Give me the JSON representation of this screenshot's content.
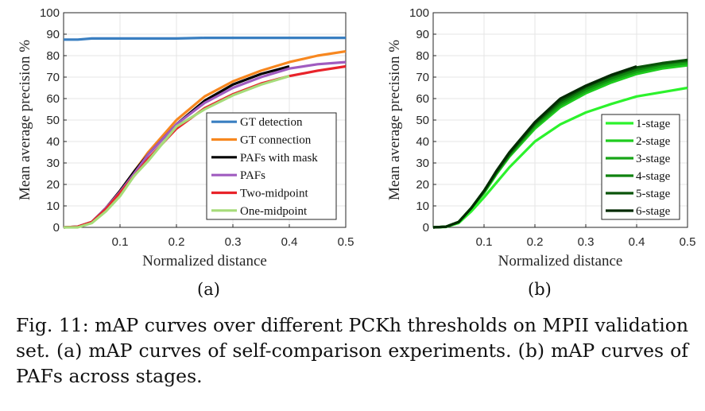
{
  "chart_data": [
    {
      "type": "line",
      "label": "(a)",
      "xlabel": "Normalized distance",
      "ylabel": "Mean average precision %",
      "xlim": [
        0,
        0.5
      ],
      "ylim": [
        0,
        100
      ],
      "xticks": [
        0.1,
        0.2,
        0.3,
        0.4,
        0.5
      ],
      "yticks": [
        0,
        10,
        20,
        30,
        40,
        50,
        60,
        70,
        80,
        90,
        100
      ],
      "grid": true,
      "legend": "bottom-right",
      "x": [
        0,
        0.025,
        0.05,
        0.075,
        0.1,
        0.125,
        0.15,
        0.2,
        0.25,
        0.3,
        0.35,
        0.4,
        0.45,
        0.5
      ],
      "series": [
        {
          "name": "GT detection",
          "color": "#3a7fc1",
          "values": [
            87.5,
            87.5,
            88,
            88,
            88,
            88,
            88,
            88,
            88.3,
            88.3,
            88.3,
            88.3,
            88.3,
            88.3
          ]
        },
        {
          "name": "GT connection",
          "color": "#f7871f",
          "values": [
            0,
            0.3,
            2.5,
            9,
            17,
            26,
            35,
            50,
            61,
            68,
            73,
            77,
            80,
            82
          ]
        },
        {
          "name": "PAFs with mask",
          "color": "#000000",
          "values": [
            0,
            0.3,
            2.5,
            9,
            17,
            26,
            34,
            48,
            59,
            66.5,
            71.5,
            75,
            null,
            null
          ]
        },
        {
          "name": "PAFs",
          "color": "#a05cc0",
          "values": [
            0,
            0.3,
            2.5,
            9,
            16.5,
            25,
            34,
            48,
            58,
            65,
            70,
            74,
            76,
            77
          ]
        },
        {
          "name": "Two-midpoint",
          "color": "#e8232a",
          "values": [
            0,
            0.3,
            2.5,
            8.5,
            16,
            24,
            32,
            46,
            55.5,
            62,
            67,
            70.5,
            73,
            75
          ]
        },
        {
          "name": "One-midpoint",
          "color": "#a6dc7a",
          "values": [
            0,
            0,
            2,
            7.5,
            14.5,
            24,
            31,
            47,
            55,
            61.5,
            66.5,
            70.5,
            null,
            null
          ]
        }
      ]
    },
    {
      "type": "line",
      "label": "(b)",
      "xlabel": "Normalized distance",
      "ylabel": "Mean average precision %",
      "xlim": [
        0,
        0.5
      ],
      "ylim": [
        0,
        100
      ],
      "xticks": [
        0.1,
        0.2,
        0.3,
        0.4,
        0.5
      ],
      "yticks": [
        0,
        10,
        20,
        30,
        40,
        50,
        60,
        70,
        80,
        90,
        100
      ],
      "grid": true,
      "legend": "bottom-right",
      "x": [
        0,
        0.025,
        0.05,
        0.075,
        0.1,
        0.125,
        0.15,
        0.2,
        0.25,
        0.3,
        0.35,
        0.4,
        0.45,
        0.5
      ],
      "series": [
        {
          "name": "1-stage",
          "color": "#2cf22c",
          "values": [
            0,
            0.2,
            2,
            7.5,
            14,
            21,
            28,
            40,
            48,
            53.5,
            57.5,
            61,
            63,
            65
          ]
        },
        {
          "name": "2-stage",
          "color": "#1fcc1f",
          "values": [
            0,
            0.3,
            2.5,
            9,
            16,
            25,
            33,
            46,
            56,
            62.5,
            67.5,
            71.5,
            74,
            75.5
          ]
        },
        {
          "name": "3-stage",
          "color": "#17a517",
          "values": [
            0,
            0.3,
            2.5,
            9,
            16.5,
            25.5,
            33.5,
            47,
            57,
            63.5,
            68.5,
            72.5,
            75,
            76.5
          ]
        },
        {
          "name": "4-stage",
          "color": "#0f820f",
          "values": [
            0,
            0.3,
            2.5,
            9,
            17,
            26,
            34,
            48,
            58,
            64.5,
            69.5,
            73.5,
            76,
            77.5
          ]
        },
        {
          "name": "5-stage",
          "color": "#0a540a",
          "values": [
            0,
            0.3,
            2.5,
            9,
            17,
            26,
            34.5,
            48.5,
            59,
            65.5,
            70.5,
            74.5,
            76.5,
            78
          ]
        },
        {
          "name": "6-stage",
          "color": "#032b03",
          "values": [
            0,
            0.3,
            2.5,
            9,
            17,
            26.5,
            35,
            49,
            60,
            66,
            71,
            75,
            null,
            null
          ]
        }
      ]
    }
  ],
  "captions": {
    "a": "(a)",
    "b": "(b)"
  },
  "figure_caption": "Fig. 11: mAP curves over different PCKh thresholds on MPII validation set. (a) mAP curves of self-comparison experiments. (b) mAP curves of PAFs across stages."
}
